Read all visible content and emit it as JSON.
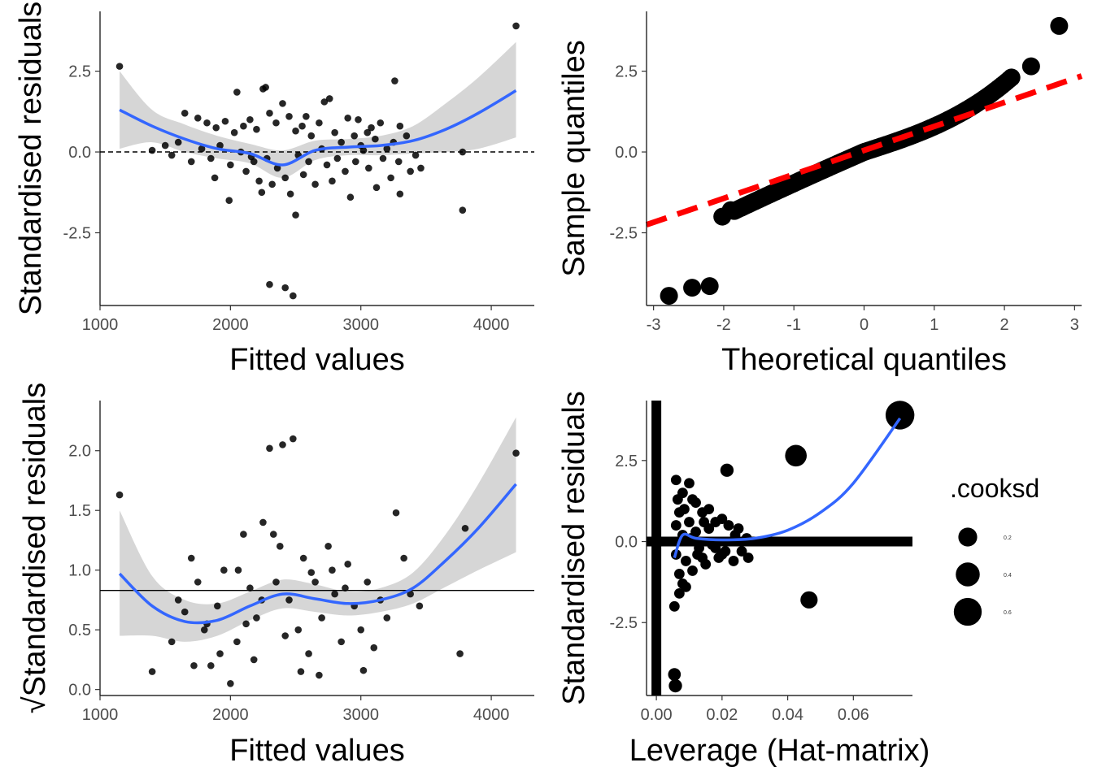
{
  "chart_data": [
    {
      "type": "scatter",
      "panel": "residuals-vs-fitted",
      "xlabel": "Fitted values",
      "ylabel": "Standardised residuals",
      "xlim": [
        1000,
        4330
      ],
      "ylim": [
        -4.75,
        4.35
      ],
      "x_ticks": [
        1000,
        2000,
        3000,
        4000
      ],
      "x_tick_labels": [
        "1000",
        "2000",
        "3000",
        "4000"
      ],
      "y_ticks": [
        -2.5,
        0,
        2.5
      ],
      "y_tick_labels": [
        "-2.5",
        "0.0",
        "2.5"
      ],
      "reference_line": {
        "y": 0,
        "style": "dashed"
      },
      "points": [
        [
          1150,
          2.65
        ],
        [
          4190,
          3.9
        ],
        [
          3260,
          2.2
        ],
        [
          2250,
          1.95
        ],
        [
          2270,
          2.0
        ],
        [
          2050,
          1.85
        ],
        [
          2400,
          1.5
        ],
        [
          2760,
          1.65
        ],
        [
          2720,
          1.55
        ],
        [
          2580,
          1.1
        ],
        [
          2900,
          1.05
        ],
        [
          2980,
          1.0
        ],
        [
          3300,
          0.8
        ],
        [
          3150,
          0.9
        ],
        [
          3080,
          0.75
        ],
        [
          1650,
          1.2
        ],
        [
          1750,
          1.05
        ],
        [
          1820,
          0.9
        ],
        [
          1890,
          0.75
        ],
        [
          1960,
          0.95
        ],
        [
          2030,
          0.6
        ],
        [
          2100,
          0.8
        ],
        [
          2150,
          1.0
        ],
        [
          2200,
          0.7
        ],
        [
          2300,
          1.2
        ],
        [
          2350,
          0.9
        ],
        [
          2450,
          1.1
        ],
        [
          2500,
          0.65
        ],
        [
          2550,
          0.8
        ],
        [
          2620,
          0.5
        ],
        [
          2680,
          0.9
        ],
        [
          2800,
          0.6
        ],
        [
          2850,
          0.3
        ],
        [
          2950,
          0.5
        ],
        [
          3000,
          0.2
        ],
        [
          3050,
          0.6
        ],
        [
          3110,
          0.4
        ],
        [
          3200,
          0.1
        ],
        [
          3250,
          0.3
        ],
        [
          3350,
          0.5
        ],
        [
          1400,
          0.05
        ],
        [
          1500,
          0.2
        ],
        [
          1550,
          -0.1
        ],
        [
          1600,
          0.3
        ],
        [
          1700,
          -0.3
        ],
        [
          1780,
          0.1
        ],
        [
          1850,
          -0.2
        ],
        [
          1920,
          0.2
        ],
        [
          2000,
          -0.4
        ],
        [
          2080,
          0.0
        ],
        [
          2120,
          -0.6
        ],
        [
          2180,
          -0.3
        ],
        [
          2220,
          -0.9
        ],
        [
          2280,
          -0.2
        ],
        [
          2320,
          -1.0
        ],
        [
          2360,
          -0.5
        ],
        [
          2420,
          -0.8
        ],
        [
          2460,
          -1.3
        ],
        [
          2520,
          -0.1
        ],
        [
          2560,
          -0.7
        ],
        [
          2600,
          -0.3
        ],
        [
          2650,
          -1.0
        ],
        [
          2700,
          0.1
        ],
        [
          2740,
          -0.4
        ],
        [
          2780,
          -0.9
        ],
        [
          2820,
          -0.2
        ],
        [
          2880,
          -0.6
        ],
        [
          2920,
          -1.4
        ],
        [
          2960,
          -0.3
        ],
        [
          3020,
          0.05
        ],
        [
          3060,
          -0.5
        ],
        [
          3120,
          -1.1
        ],
        [
          3170,
          -0.2
        ],
        [
          3230,
          -0.8
        ],
        [
          3290,
          -0.3
        ],
        [
          3380,
          -0.6
        ],
        [
          3420,
          -0.1
        ],
        [
          3460,
          -0.5
        ],
        [
          3300,
          -1.3
        ],
        [
          1990,
          -1.5
        ],
        [
          1880,
          -0.8
        ],
        [
          2240,
          -1.25
        ],
        [
          2160,
          -0.15
        ],
        [
          2300,
          -4.1
        ],
        [
          2420,
          -4.2
        ],
        [
          2480,
          -4.45
        ],
        [
          2500,
          -1.95
        ],
        [
          3780,
          -1.8
        ],
        [
          3780,
          0.0
        ]
      ],
      "smooth_curve": {
        "x": [
          1150,
          1400,
          1650,
          1900,
          2150,
          2400,
          2650,
          2900,
          3150,
          3400,
          3650,
          3900,
          4190
        ],
        "y": [
          1.3,
          0.8,
          0.4,
          0.1,
          -0.05,
          -0.4,
          0.05,
          0.15,
          0.2,
          0.35,
          0.7,
          1.2,
          1.9
        ]
      },
      "smooth_ci": {
        "upper": [
          2.5,
          1.3,
          0.85,
          0.5,
          0.25,
          0.05,
          0.35,
          0.4,
          0.5,
          0.8,
          1.5,
          2.3,
          3.4
        ],
        "lower": [
          0.1,
          0.3,
          0.0,
          -0.2,
          -0.35,
          -0.8,
          -0.25,
          -0.1,
          -0.1,
          -0.05,
          0.0,
          0.1,
          0.45
        ]
      }
    },
    {
      "type": "scatter",
      "panel": "normal-qq",
      "xlabel": "Theoretical quantiles",
      "ylabel": "Sample quantiles",
      "xlim": [
        -3.1,
        3.1
      ],
      "ylim": [
        -4.75,
        4.35
      ],
      "x_ticks": [
        -3,
        -2,
        -1,
        0,
        1,
        2,
        3
      ],
      "x_tick_labels": [
        "-3",
        "-2",
        "-1",
        "0",
        "1",
        "2",
        "3"
      ],
      "y_ticks": [
        -2.5,
        0,
        2.5
      ],
      "y_tick_labels": [
        "-2.5",
        "0.0",
        "2.5"
      ],
      "reference_line": {
        "x": [
          -3.1,
          3.1
        ],
        "y": [
          -2.25,
          2.35
        ],
        "style": "dashed",
        "color": "#ff0000"
      },
      "points": [
        [
          -2.78,
          -4.45
        ],
        [
          -2.45,
          -4.2
        ],
        [
          -2.2,
          -4.15
        ],
        [
          -2.02,
          -2.0
        ],
        [
          -1.9,
          -1.8
        ],
        [
          2.38,
          2.65
        ],
        [
          2.78,
          3.9
        ]
      ]
    },
    {
      "type": "scatter",
      "panel": "scale-location",
      "xlabel": "Fitted values",
      "ylabel": "√Standardised residuals",
      "xlim": [
        1000,
        4330
      ],
      "ylim": [
        -0.05,
        2.42
      ],
      "x_ticks": [
        1000,
        2000,
        3000,
        4000
      ],
      "x_tick_labels": [
        "1000",
        "2000",
        "3000",
        "4000"
      ],
      "y_ticks": [
        0,
        0.5,
        1,
        1.5,
        2
      ],
      "y_tick_labels": [
        "0.0",
        "0.5",
        "1.0",
        "1.5",
        "2.0"
      ],
      "reference_line": {
        "y": 0.83,
        "style": "solid"
      },
      "points": [
        [
          1150,
          1.63
        ],
        [
          1400,
          0.15
        ],
        [
          1550,
          0.4
        ],
        [
          1600,
          0.75
        ],
        [
          1650,
          0.65
        ],
        [
          1700,
          1.1
        ],
        [
          1750,
          0.9
        ],
        [
          1800,
          0.5
        ],
        [
          1850,
          0.2
        ],
        [
          1900,
          0.7
        ],
        [
          1950,
          1.0
        ],
        [
          2000,
          0.05
        ],
        [
          2050,
          0.4
        ],
        [
          2100,
          1.3
        ],
        [
          2150,
          0.85
        ],
        [
          2200,
          0.6
        ],
        [
          2250,
          1.4
        ],
        [
          2300,
          2.02
        ],
        [
          2350,
          0.9
        ],
        [
          2380,
          1.2
        ],
        [
          2400,
          2.05
        ],
        [
          2450,
          0.75
        ],
        [
          2480,
          2.1
        ],
        [
          2520,
          0.5
        ],
        [
          2560,
          1.1
        ],
        [
          2600,
          0.3
        ],
        [
          2650,
          0.9
        ],
        [
          2700,
          0.6
        ],
        [
          2750,
          1.2
        ],
        [
          2800,
          0.8
        ],
        [
          2850,
          0.4
        ],
        [
          2900,
          1.05
        ],
        [
          2950,
          0.7
        ],
        [
          3000,
          0.5
        ],
        [
          3050,
          0.9
        ],
        [
          3100,
          0.35
        ],
        [
          3150,
          0.75
        ],
        [
          3200,
          0.6
        ],
        [
          3270,
          1.48
        ],
        [
          3330,
          1.1
        ],
        [
          3380,
          0.8
        ],
        [
          3450,
          0.7
        ],
        [
          3760,
          0.3
        ],
        [
          3800,
          1.35
        ],
        [
          4190,
          1.98
        ],
        [
          1720,
          0.2
        ],
        [
          1820,
          0.55
        ],
        [
          1920,
          0.3
        ],
        [
          2120,
          0.55
        ],
        [
          2180,
          0.25
        ],
        [
          2240,
          0.75
        ],
        [
          2420,
          0.45
        ],
        [
          2540,
          0.15
        ],
        [
          2680,
          0.12
        ],
        [
          2880,
          0.85
        ],
        [
          3020,
          0.16
        ],
        [
          2060,
          1.0
        ],
        [
          2330,
          1.3
        ],
        [
          2620,
          0.98
        ],
        [
          2780,
          1.0
        ]
      ],
      "smooth_curve": {
        "x": [
          1150,
          1400,
          1650,
          1900,
          2150,
          2400,
          2650,
          2900,
          3150,
          3400,
          3650,
          3900,
          4190
        ],
        "y": [
          0.97,
          0.7,
          0.57,
          0.58,
          0.7,
          0.8,
          0.76,
          0.72,
          0.75,
          0.85,
          1.08,
          1.35,
          1.72
        ]
      },
      "smooth_ci": {
        "upper": [
          1.5,
          0.95,
          0.75,
          0.72,
          0.82,
          0.92,
          0.88,
          0.82,
          0.85,
          0.98,
          1.3,
          1.72,
          2.28
        ],
        "lower": [
          0.45,
          0.45,
          0.4,
          0.45,
          0.58,
          0.68,
          0.65,
          0.62,
          0.65,
          0.72,
          0.86,
          1.0,
          1.15
        ]
      }
    },
    {
      "type": "scatter",
      "panel": "residuals-vs-leverage",
      "xlabel": "Leverage (Hat-matrix)",
      "ylabel": "Standardised residuals",
      "xlim": [
        -0.003,
        0.078
      ],
      "ylim": [
        -4.75,
        4.35
      ],
      "x_ticks": [
        0,
        0.02,
        0.04,
        0.06
      ],
      "x_tick_labels": [
        "0.00",
        "0.02",
        "0.04",
        "0.06"
      ],
      "y_ticks": [
        -2.5,
        0,
        2.5
      ],
      "y_tick_labels": [
        "-2.5",
        "0.0",
        "2.5"
      ],
      "reference_lines": {
        "x": 0,
        "y": 0
      },
      "legend": {
        "title": ".cooksd",
        "position": "right",
        "sizes": [
          0.2,
          0.4,
          0.6
        ],
        "labels": [
          "0.2",
          "0.4",
          "0.6"
        ]
      },
      "points": [
        [
          0.0742,
          3.9,
          0.65
        ],
        [
          0.0425,
          2.65,
          0.3
        ],
        [
          0.0465,
          -1.8,
          0.15
        ],
        [
          0.0215,
          2.2,
          0.06
        ],
        [
          0.0055,
          -4.1,
          0.05
        ],
        [
          0.0058,
          -4.45,
          0.06
        ],
        [
          0.006,
          1.9,
          0.02
        ],
        [
          0.008,
          1.5,
          0.02
        ],
        [
          0.01,
          1.8,
          0.02
        ],
        [
          0.012,
          1.2,
          0.02
        ],
        [
          0.014,
          0.9,
          0.02
        ],
        [
          0.016,
          1.0,
          0.02
        ],
        [
          0.018,
          0.6,
          0.02
        ],
        [
          0.02,
          0.7,
          0.02
        ],
        [
          0.022,
          0.5,
          0.02
        ],
        [
          0.025,
          0.4,
          0.02
        ],
        [
          0.028,
          -0.5,
          0.02
        ],
        [
          0.026,
          -0.3,
          0.02
        ],
        [
          0.024,
          0.2,
          0.02
        ],
        [
          0.006,
          -0.4,
          0.02
        ],
        [
          0.007,
          -1.0,
          0.02
        ],
        [
          0.008,
          -1.3,
          0.02
        ],
        [
          0.009,
          -0.6,
          0.02
        ],
        [
          0.011,
          -0.9,
          0.02
        ],
        [
          0.013,
          -0.2,
          0.02
        ],
        [
          0.015,
          -0.7,
          0.02
        ],
        [
          0.017,
          -0.1,
          0.02
        ],
        [
          0.019,
          -0.5,
          0.02
        ],
        [
          0.021,
          -0.3,
          0.02
        ],
        [
          0.0055,
          -2.0,
          0.02
        ],
        [
          0.007,
          -1.6,
          0.02
        ],
        [
          0.009,
          -1.4,
          0.02
        ],
        [
          0.006,
          0.5,
          0.02
        ],
        [
          0.007,
          0.9,
          0.02
        ],
        [
          0.008,
          0.2,
          0.02
        ],
        [
          0.01,
          0.6,
          0.02
        ],
        [
          0.012,
          0.3,
          0.02
        ],
        [
          0.014,
          -0.5,
          0.02
        ],
        [
          0.016,
          0.4,
          0.02
        ],
        [
          0.018,
          -0.2,
          0.02
        ],
        [
          0.0065,
          1.3,
          0.02
        ],
        [
          0.0085,
          1.0,
          0.02
        ],
        [
          0.0105,
          0.1,
          0.02
        ],
        [
          0.0125,
          -0.4,
          0.02
        ],
        [
          0.0145,
          0.6,
          0.02
        ],
        [
          0.0235,
          -0.6,
          0.02
        ],
        [
          0.02,
          -0.4,
          0.02
        ],
        [
          0.0275,
          0.1,
          0.02
        ],
        [
          0.011,
          1.3,
          0.02
        ]
      ],
      "smooth_curve": {
        "x": [
          0.0055,
          0.008,
          0.012,
          0.02,
          0.03,
          0.04,
          0.05,
          0.06,
          0.0742
        ],
        "y": [
          -0.5,
          0.2,
          0.1,
          0.05,
          0.1,
          0.35,
          0.9,
          1.8,
          3.8
        ]
      }
    }
  ]
}
